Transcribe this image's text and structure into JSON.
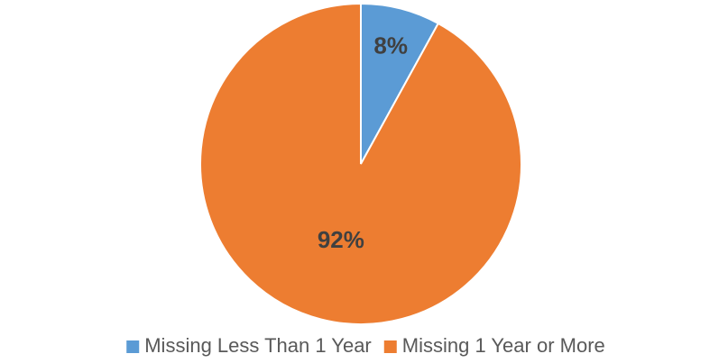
{
  "chart_data": {
    "type": "pie",
    "categories": [
      "Missing Less Than 1 Year",
      "Missing 1 Year or More"
    ],
    "values": [
      8,
      92
    ],
    "value_labels": [
      "8%",
      "92%"
    ],
    "colors": [
      "#5b9bd5",
      "#ed7d31"
    ],
    "legend": "bottom"
  }
}
